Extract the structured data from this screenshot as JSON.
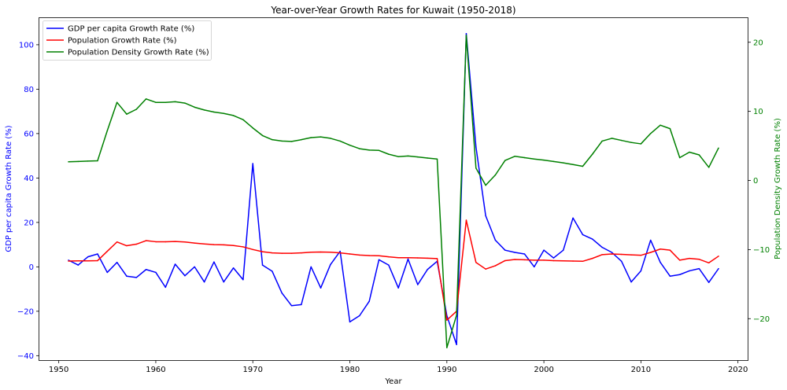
{
  "chart_data": {
    "type": "line",
    "title": "Year-over-Year Growth Rates for Kuwait (1950-2018)",
    "xlabel": "Year",
    "ylabel_left": "GDP per capita Growth Rate (%)",
    "ylabel_right": "Population Density Growth Rate (%)",
    "xlim": [
      1948,
      2021
    ],
    "ylim_left": [
      -42,
      112
    ],
    "ylim_right": [
      -26,
      23.5
    ],
    "x_ticks": [
      1950,
      1960,
      1970,
      1980,
      1990,
      2000,
      2010,
      2020
    ],
    "y_ticks_left": [
      -40,
      -20,
      0,
      20,
      40,
      60,
      80,
      100
    ],
    "y_ticks_right": [
      -20,
      -10,
      0,
      10,
      20
    ],
    "grid": false,
    "legend_position": "top-left",
    "left_axis_color": "#0000ff",
    "right_axis_color": "#008000",
    "x": [
      1951,
      1952,
      1953,
      1954,
      1955,
      1956,
      1957,
      1958,
      1959,
      1960,
      1961,
      1962,
      1963,
      1964,
      1965,
      1966,
      1967,
      1968,
      1969,
      1970,
      1971,
      1972,
      1973,
      1974,
      1975,
      1976,
      1977,
      1978,
      1979,
      1980,
      1981,
      1982,
      1983,
      1984,
      1985,
      1986,
      1987,
      1988,
      1989,
      1990,
      1991,
      1992,
      1993,
      1994,
      1995,
      1996,
      1997,
      1998,
      1999,
      2000,
      2001,
      2002,
      2003,
      2004,
      2005,
      2006,
      2007,
      2008,
      2009,
      2010,
      2011,
      2012,
      2013,
      2014,
      2015,
      2016,
      2017,
      2018
    ],
    "series": [
      {
        "name": "GDP per capita Growth Rate (%)",
        "axis": "left",
        "color": "#0000ff",
        "values": [
          3.0,
          0.8,
          4.5,
          5.8,
          -2.5,
          2.0,
          -4.2,
          -4.8,
          -1.2,
          -2.5,
          -9.2,
          1.2,
          -4.0,
          0.0,
          -6.8,
          2.2,
          -6.8,
          -0.5,
          -5.8,
          46.5,
          0.8,
          -2.0,
          -11.8,
          -17.5,
          -17.0,
          0.0,
          -9.5,
          1.0,
          7.0,
          -24.8,
          -22.0,
          -15.5,
          3.2,
          0.8,
          -9.5,
          3.5,
          -8.0,
          -1.2,
          2.5,
          -22.0,
          -35.0,
          105.0,
          54.0,
          23.0,
          12.0,
          7.5,
          6.5,
          5.8,
          0.0,
          7.5,
          4.0,
          7.5,
          22.0,
          14.5,
          12.5,
          8.8,
          6.5,
          2.5,
          -6.8,
          -1.8,
          12.0,
          2.0,
          -4.2,
          -3.5,
          -1.8,
          -0.8,
          -7.0,
          -0.8
        ]
      },
      {
        "name": "Population Growth Rate (%)",
        "axis": "left",
        "color": "#ff0000",
        "values": [
          2.6,
          2.7,
          2.7,
          2.8,
          7.0,
          11.2,
          9.5,
          10.2,
          11.8,
          11.3,
          11.3,
          11.4,
          11.2,
          10.7,
          10.3,
          10.0,
          9.9,
          9.6,
          9.0,
          7.8,
          6.8,
          6.3,
          6.1,
          6.1,
          6.3,
          6.6,
          6.7,
          6.6,
          6.3,
          5.8,
          5.3,
          5.1,
          5.0,
          4.5,
          4.1,
          4.1,
          4.0,
          3.9,
          3.7,
          -24.0,
          -20.0,
          21.0,
          2.0,
          -1.0,
          0.5,
          2.8,
          3.3,
          3.2,
          3.0,
          3.0,
          2.8,
          2.7,
          2.6,
          2.5,
          3.8,
          5.5,
          5.8,
          5.6,
          5.4,
          5.2,
          6.5,
          8.0,
          7.5,
          3.0,
          3.8,
          3.4,
          1.8,
          4.8
        ]
      },
      {
        "name": "Population Density Growth Rate (%)",
        "axis": "right",
        "color": "#008000",
        "values": [
          2.7,
          2.75,
          2.8,
          2.85,
          7.2,
          11.3,
          9.6,
          10.3,
          11.8,
          11.3,
          11.3,
          11.4,
          11.2,
          10.6,
          10.2,
          9.9,
          9.7,
          9.4,
          8.8,
          7.6,
          6.5,
          5.9,
          5.7,
          5.65,
          5.9,
          6.2,
          6.3,
          6.1,
          5.7,
          5.1,
          4.6,
          4.4,
          4.35,
          3.8,
          3.45,
          3.55,
          3.4,
          3.25,
          3.1,
          -24.2,
          -19.5,
          21.0,
          1.8,
          -0.7,
          0.8,
          2.9,
          3.5,
          3.3,
          3.1,
          2.95,
          2.75,
          2.55,
          2.3,
          2.05,
          3.8,
          5.7,
          6.1,
          5.8,
          5.5,
          5.3,
          6.8,
          8.0,
          7.5,
          3.3,
          4.1,
          3.7,
          1.9,
          4.7
        ]
      }
    ]
  }
}
